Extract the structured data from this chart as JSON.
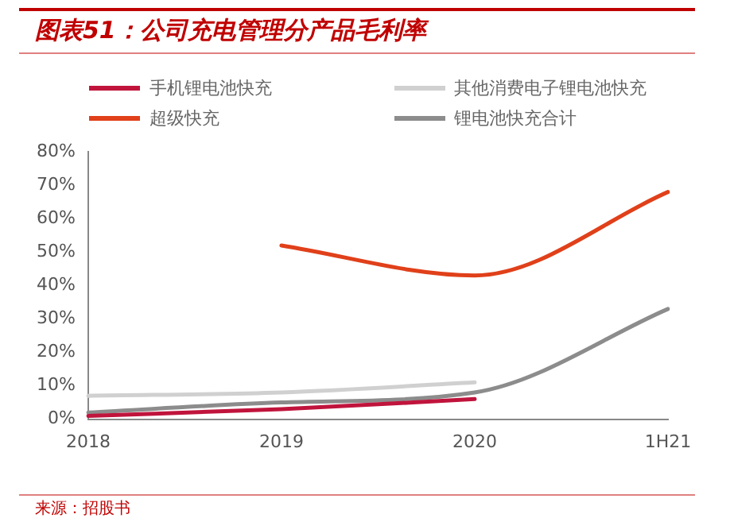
{
  "chart_data": {
    "type": "line",
    "title": "图表51：公司充电管理分产品毛利率",
    "categories": [
      "2018",
      "2019",
      "2020",
      "1H21"
    ],
    "series": [
      {
        "name": "手机锂电池快充",
        "color": "#c0143c",
        "values": [
          1,
          3,
          6,
          null
        ]
      },
      {
        "name": "其他消费电子锂电池快充",
        "color": "#d0d0d0",
        "values": [
          7,
          8,
          11,
          null
        ]
      },
      {
        "name": "超级快充",
        "color": "#e0401a",
        "values": [
          null,
          52,
          43,
          68
        ]
      },
      {
        "name": "锂电池快充合计",
        "color": "#8c8c8c",
        "values": [
          2,
          5,
          8,
          33
        ]
      }
    ],
    "ylim": [
      0,
      80
    ],
    "yticks": [
      {
        "value": 0,
        "label": "0%"
      },
      {
        "value": 10,
        "label": "10%"
      },
      {
        "value": 20,
        "label": "20%"
      },
      {
        "value": 30,
        "label": "30%"
      },
      {
        "value": 40,
        "label": "40%"
      },
      {
        "value": 50,
        "label": "50%"
      },
      {
        "value": 60,
        "label": "60%"
      },
      {
        "value": 70,
        "label": "70%"
      },
      {
        "value": 80,
        "label": "80%"
      }
    ],
    "grid": false,
    "legend": "top",
    "marker": "none",
    "line_style": "solid",
    "annotations": [
      "来源：招股书"
    ]
  }
}
